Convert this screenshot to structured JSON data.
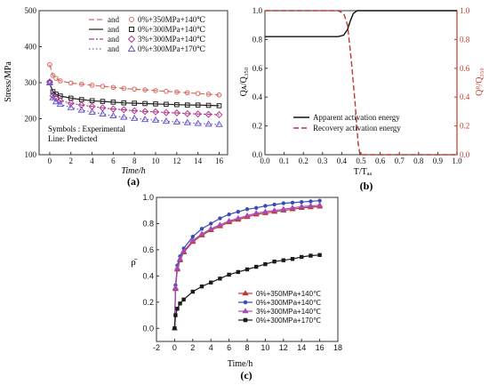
{
  "chart_data": [
    {
      "id": "a",
      "type": "line",
      "panel_label": "(a)",
      "xlabel": "Time/h",
      "ylabel": "Stress/MPa",
      "xlim": [
        -1,
        16.8
      ],
      "ylim": [
        100,
        500
      ],
      "xticks": [
        0,
        2,
        4,
        6,
        8,
        10,
        12,
        14,
        16
      ],
      "yticks": [
        100,
        200,
        300,
        400,
        500
      ],
      "annotation": [
        "Symbols : Experimental",
        "Line: Predicted"
      ],
      "legend": {
        "placement": "top-right",
        "joiner": "and",
        "entries": [
          "0%+350MPa+140℃",
          "0%+300MPa+140℃",
          "3%+300MPa+140℃",
          "0%+300MPa+170℃"
        ]
      },
      "colors": [
        "#d9695f",
        "#222222",
        "#b53b8e",
        "#6a5acd"
      ],
      "series": [
        {
          "name": "0%+350MPa+140℃",
          "marker": "circle",
          "points": [
            [
              0,
              350
            ],
            [
              0.3,
              320
            ],
            [
              0.6,
              312
            ],
            [
              1,
              305
            ],
            [
              2,
              299
            ],
            [
              3,
              296
            ],
            [
              4,
              293
            ],
            [
              5,
              290
            ],
            [
              6,
              287
            ],
            [
              7,
              284
            ],
            [
              8,
              282
            ],
            [
              9,
              280
            ],
            [
              10,
              278
            ],
            [
              11,
              276
            ],
            [
              12,
              274
            ],
            [
              13,
              272
            ],
            [
              14,
              270
            ],
            [
              15,
              268
            ],
            [
              16,
              266
            ]
          ]
        },
        {
          "name": "0%+300MPa+140℃",
          "marker": "square",
          "points": [
            [
              0,
              300
            ],
            [
              0.3,
              275
            ],
            [
              0.6,
              268
            ],
            [
              1,
              263
            ],
            [
              2,
              257
            ],
            [
              3,
              253
            ],
            [
              4,
              250
            ],
            [
              5,
              248
            ],
            [
              6,
              246
            ],
            [
              7,
              244
            ],
            [
              8,
              243
            ],
            [
              9,
              242
            ],
            [
              10,
              241
            ],
            [
              11,
              240
            ],
            [
              12,
              239
            ],
            [
              13,
              238
            ],
            [
              14,
              238
            ],
            [
              15,
              237
            ],
            [
              16,
              236
            ]
          ]
        },
        {
          "name": "3%+300MPa+140℃",
          "marker": "diamond",
          "points": [
            [
              0,
              302
            ],
            [
              0.3,
              264
            ],
            [
              0.6,
              256
            ],
            [
              1,
              250
            ],
            [
              2,
              243
            ],
            [
              3,
              238
            ],
            [
              4,
              234
            ],
            [
              5,
              230
            ],
            [
              6,
              227
            ],
            [
              7,
              225
            ],
            [
              8,
              222
            ],
            [
              9,
              220
            ],
            [
              10,
              219
            ],
            [
              11,
              217
            ],
            [
              12,
              216
            ],
            [
              13,
              214
            ],
            [
              14,
              213
            ],
            [
              15,
              212
            ],
            [
              16,
              211
            ]
          ]
        },
        {
          "name": "0%+300MPa+170℃",
          "marker": "triangle",
          "points": [
            [
              0,
              300
            ],
            [
              0.3,
              258
            ],
            [
              0.6,
              247
            ],
            [
              1,
              240
            ],
            [
              2,
              231
            ],
            [
              3,
              224
            ],
            [
              4,
              218
            ],
            [
              5,
              213
            ],
            [
              6,
              208
            ],
            [
              7,
              204
            ],
            [
              8,
              201
            ],
            [
              9,
              198
            ],
            [
              10,
              196
            ],
            [
              11,
              193
            ],
            [
              12,
              191
            ],
            [
              13,
              189
            ],
            [
              14,
              187
            ],
            [
              15,
              185
            ],
            [
              16,
              184
            ]
          ]
        }
      ]
    },
    {
      "id": "b",
      "type": "line",
      "panel_label": "(b)",
      "xlabel": "T/Tₐₐ",
      "ylabel": "Qᴀ/Q₃₅₀",
      "ylabel_right": "Qᴿ/Q₃₅₀",
      "xlim": [
        0,
        1
      ],
      "ylim": [
        0,
        1
      ],
      "xticks": [
        0.0,
        0.1,
        0.2,
        0.3,
        0.4,
        0.5,
        0.6,
        0.7,
        0.8,
        0.9,
        1.0
      ],
      "yticks": [
        0.0,
        0.2,
        0.4,
        0.6,
        0.8,
        1.0
      ],
      "legend": {
        "placement": "bottom-right",
        "entries": [
          "Apparent activation energy",
          "Recovery activation energy"
        ]
      },
      "colors": [
        "#111111",
        "#c0392b"
      ],
      "series": [
        {
          "name": "Apparent activation energy",
          "style": "solid",
          "points": [
            [
              0,
              0.82
            ],
            [
              0.38,
              0.82
            ],
            [
              0.41,
              0.83
            ],
            [
              0.43,
              0.87
            ],
            [
              0.445,
              0.93
            ],
            [
              0.46,
              0.98
            ],
            [
              0.48,
              1.0
            ],
            [
              1.0,
              1.0
            ]
          ]
        },
        {
          "name": "Recovery activation energy",
          "style": "dashed",
          "points": [
            [
              0,
              1.0
            ],
            [
              0.38,
              1.0
            ],
            [
              0.41,
              0.98
            ],
            [
              0.43,
              0.9
            ],
            [
              0.45,
              0.65
            ],
            [
              0.47,
              0.35
            ],
            [
              0.485,
              0.08
            ],
            [
              0.495,
              0.0
            ],
            [
              1.0,
              0.0
            ]
          ]
        }
      ]
    },
    {
      "id": "c",
      "type": "line",
      "panel_label": "(c)",
      "xlabel": "Time/h",
      "ylabel": "ρ̄",
      "xlim": [
        -2,
        18
      ],
      "ylim": [
        -0.1,
        1.0
      ],
      "xticks": [
        -2,
        0,
        2,
        4,
        6,
        8,
        10,
        12,
        14,
        16,
        18
      ],
      "yticks": [
        0.0,
        0.2,
        0.4,
        0.6,
        0.8,
        1.0
      ],
      "legend": {
        "placement": "bottom-right",
        "entries": [
          "0%+350MPa+140℃",
          "0%+300MPa+140℃",
          "3%+300MPa+140℃",
          "0%+300MPa+170℃"
        ]
      },
      "colors": [
        "#c0392b",
        "#3b4bb5",
        "#a84bb5",
        "#1a1a1a"
      ],
      "series": [
        {
          "name": "0%+350MPa+140℃",
          "marker": "triangle",
          "points": [
            [
              0,
              0
            ],
            [
              0.1,
              0.3
            ],
            [
              0.3,
              0.45
            ],
            [
              0.6,
              0.52
            ],
            [
              1,
              0.58
            ],
            [
              2,
              0.66
            ],
            [
              3,
              0.71
            ],
            [
              4,
              0.75
            ],
            [
              5,
              0.78
            ],
            [
              6,
              0.81
            ],
            [
              7,
              0.83
            ],
            [
              8,
              0.85
            ],
            [
              9,
              0.87
            ],
            [
              10,
              0.88
            ],
            [
              11,
              0.89
            ],
            [
              12,
              0.9
            ],
            [
              13,
              0.91
            ],
            [
              14,
              0.92
            ],
            [
              15,
              0.925
            ],
            [
              16,
              0.93
            ]
          ]
        },
        {
          "name": "0%+300MPa+140℃",
          "marker": "circle",
          "points": [
            [
              0,
              0
            ],
            [
              0.1,
              0.33
            ],
            [
              0.3,
              0.48
            ],
            [
              0.6,
              0.55
            ],
            [
              1,
              0.61
            ],
            [
              2,
              0.7
            ],
            [
              3,
              0.76
            ],
            [
              4,
              0.8
            ],
            [
              5,
              0.84
            ],
            [
              6,
              0.87
            ],
            [
              7,
              0.89
            ],
            [
              8,
              0.91
            ],
            [
              9,
              0.92
            ],
            [
              10,
              0.935
            ],
            [
              11,
              0.945
            ],
            [
              12,
              0.955
            ],
            [
              13,
              0.96
            ],
            [
              14,
              0.965
            ],
            [
              15,
              0.97
            ],
            [
              16,
              0.975
            ]
          ]
        },
        {
          "name": "3%+300MPa+140℃",
          "marker": "triangle",
          "points": [
            [
              0,
              0
            ],
            [
              0.1,
              0.31
            ],
            [
              0.3,
              0.46
            ],
            [
              0.6,
              0.53
            ],
            [
              1,
              0.59
            ],
            [
              2,
              0.67
            ],
            [
              3,
              0.72
            ],
            [
              4,
              0.76
            ],
            [
              5,
              0.79
            ],
            [
              6,
              0.82
            ],
            [
              7,
              0.84
            ],
            [
              8,
              0.86
            ],
            [
              9,
              0.88
            ],
            [
              10,
              0.89
            ],
            [
              11,
              0.9
            ],
            [
              12,
              0.91
            ],
            [
              13,
              0.92
            ],
            [
              14,
              0.93
            ],
            [
              15,
              0.935
            ],
            [
              16,
              0.94
            ]
          ]
        },
        {
          "name": "0%+300MPa+170℃",
          "marker": "square",
          "points": [
            [
              0,
              0
            ],
            [
              0.1,
              0.1
            ],
            [
              0.3,
              0.15
            ],
            [
              0.6,
              0.19
            ],
            [
              1,
              0.22
            ],
            [
              2,
              0.28
            ],
            [
              3,
              0.32
            ],
            [
              4,
              0.35
            ],
            [
              5,
              0.38
            ],
            [
              6,
              0.41
            ],
            [
              7,
              0.43
            ],
            [
              8,
              0.45
            ],
            [
              9,
              0.47
            ],
            [
              10,
              0.49
            ],
            [
              11,
              0.51
            ],
            [
              12,
              0.52
            ],
            [
              13,
              0.53
            ],
            [
              14,
              0.545
            ],
            [
              15,
              0.555
            ],
            [
              16,
              0.56
            ]
          ]
        }
      ]
    }
  ]
}
